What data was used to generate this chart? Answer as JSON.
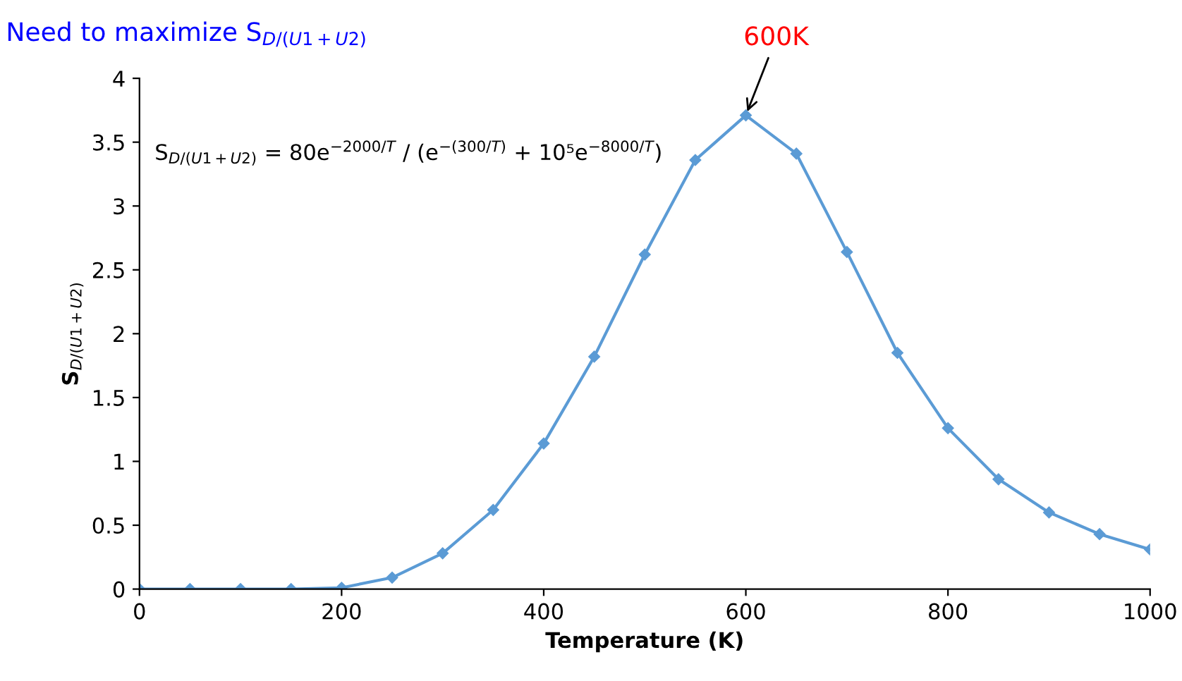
{
  "chart_data": {
    "type": "line",
    "title": "Need to maximize S$_{D/(U1+U2)}$",
    "xlabel": "Temperature (K)",
    "ylabel": "S$_{D/(U1+U2)}$",
    "x": [
      0,
      50,
      100,
      150,
      200,
      250,
      300,
      350,
      400,
      450,
      500,
      550,
      600,
      650,
      700,
      750,
      800,
      850,
      900,
      950,
      1000
    ],
    "series": [
      {
        "color": "#5b9bd5",
        "values": [
          0,
          0,
          0,
          0,
          0.01,
          0.09,
          0.28,
          0.62,
          1.14,
          1.82,
          2.62,
          3.36,
          3.71,
          3.41,
          2.64,
          1.85,
          1.26,
          0.86,
          0.6,
          0.43,
          0.31
        ]
      }
    ],
    "xlim": [
      0,
      1000
    ],
    "xticks": [
      0,
      200,
      400,
      600,
      800,
      1000
    ],
    "ylim": [
      0,
      4
    ],
    "yticks": [
      0,
      0.5,
      1,
      1.5,
      2,
      2.5,
      3,
      3.5,
      4
    ],
    "marker": "diamond",
    "grid": false,
    "legend": false,
    "annotations": [
      {
        "text": "600K",
        "x": 600,
        "y": 3.71
      },
      "S$_{D/(U1+U2)}$ = 80e$^{−2000/T}$ / (e$^{−(300/T)}$ + 10⁵e$^{−8000/T}$)"
    ]
  }
}
